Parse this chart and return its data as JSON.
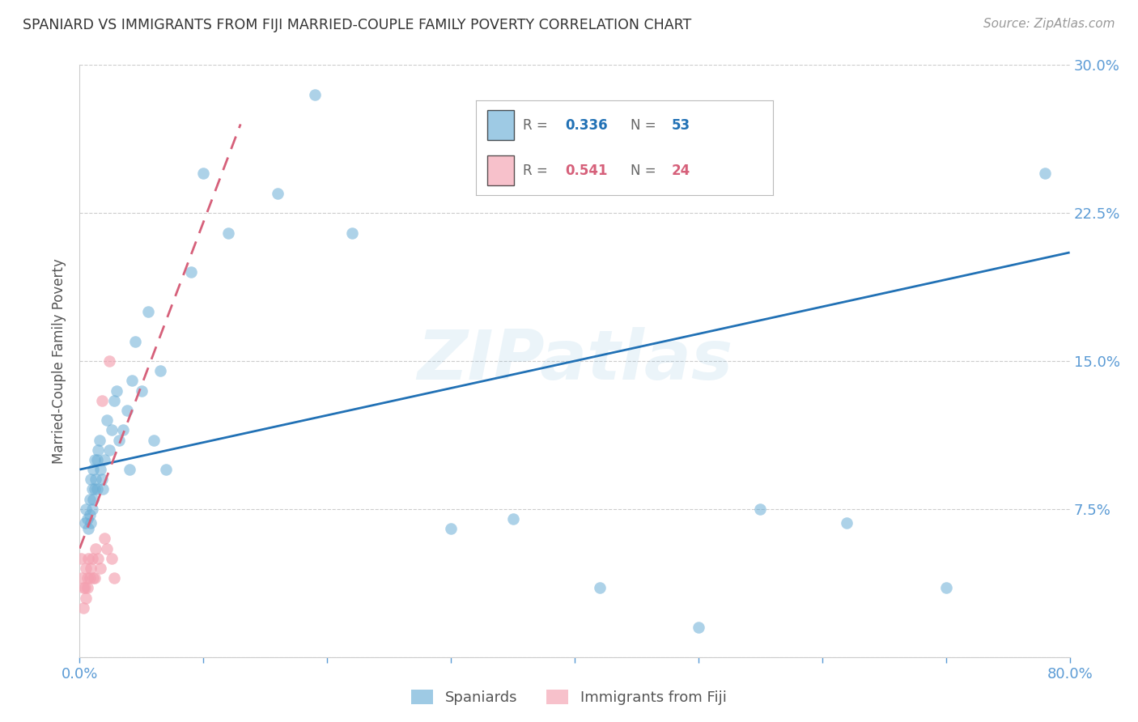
{
  "title": "SPANIARD VS IMMIGRANTS FROM FIJI MARRIED-COUPLE FAMILY POVERTY CORRELATION CHART",
  "source": "Source: ZipAtlas.com",
  "ylabel": "Married-Couple Family Poverty",
  "watermark": "ZIPatlas",
  "xlim": [
    0.0,
    0.8
  ],
  "ylim": [
    0.0,
    0.3
  ],
  "yticks": [
    0.0,
    0.075,
    0.15,
    0.225,
    0.3
  ],
  "yticklabels_right": [
    "",
    "7.5%",
    "15.0%",
    "22.5%",
    "30.0%"
  ],
  "legend_color1": "#6baed6",
  "legend_color2": "#f4a0b0",
  "scatter_color_blue": "#6baed6",
  "scatter_color_pink": "#f4a0b0",
  "trendline_color_blue": "#2171b5",
  "trendline_color_pink": "#d6607a",
  "background_color": "#ffffff",
  "grid_color": "#cccccc",
  "axis_color": "#5b9bd5",
  "R1": "0.336",
  "N1": "53",
  "R2": "0.541",
  "N2": "24",
  "blue_scatter_x": [
    0.004,
    0.005,
    0.006,
    0.007,
    0.008,
    0.008,
    0.009,
    0.009,
    0.01,
    0.01,
    0.011,
    0.011,
    0.012,
    0.012,
    0.013,
    0.014,
    0.014,
    0.015,
    0.016,
    0.017,
    0.018,
    0.019,
    0.02,
    0.022,
    0.024,
    0.026,
    0.028,
    0.03,
    0.032,
    0.035,
    0.038,
    0.04,
    0.042,
    0.045,
    0.05,
    0.055,
    0.06,
    0.065,
    0.07,
    0.09,
    0.1,
    0.12,
    0.16,
    0.19,
    0.22,
    0.3,
    0.35,
    0.42,
    0.5,
    0.55,
    0.62,
    0.7,
    0.78
  ],
  "blue_scatter_y": [
    0.068,
    0.075,
    0.07,
    0.065,
    0.072,
    0.08,
    0.068,
    0.09,
    0.075,
    0.085,
    0.08,
    0.095,
    0.085,
    0.1,
    0.09,
    0.085,
    0.1,
    0.105,
    0.11,
    0.095,
    0.09,
    0.085,
    0.1,
    0.12,
    0.105,
    0.115,
    0.13,
    0.135,
    0.11,
    0.115,
    0.125,
    0.095,
    0.14,
    0.16,
    0.135,
    0.175,
    0.11,
    0.145,
    0.095,
    0.195,
    0.245,
    0.215,
    0.235,
    0.285,
    0.215,
    0.065,
    0.07,
    0.035,
    0.015,
    0.075,
    0.068,
    0.035,
    0.245
  ],
  "pink_scatter_x": [
    0.001,
    0.002,
    0.003,
    0.003,
    0.004,
    0.005,
    0.005,
    0.006,
    0.006,
    0.007,
    0.008,
    0.009,
    0.01,
    0.011,
    0.012,
    0.013,
    0.015,
    0.017,
    0.018,
    0.02,
    0.022,
    0.024,
    0.026,
    0.028
  ],
  "pink_scatter_y": [
    0.05,
    0.04,
    0.035,
    0.025,
    0.035,
    0.03,
    0.045,
    0.035,
    0.04,
    0.05,
    0.04,
    0.045,
    0.05,
    0.04,
    0.04,
    0.055,
    0.05,
    0.045,
    0.13,
    0.06,
    0.055,
    0.15,
    0.05,
    0.04
  ],
  "blue_trend_x": [
    0.0,
    0.8
  ],
  "blue_trend_y": [
    0.095,
    0.205
  ],
  "pink_trend_x": [
    0.0,
    0.13
  ],
  "pink_trend_y": [
    0.055,
    0.27
  ]
}
